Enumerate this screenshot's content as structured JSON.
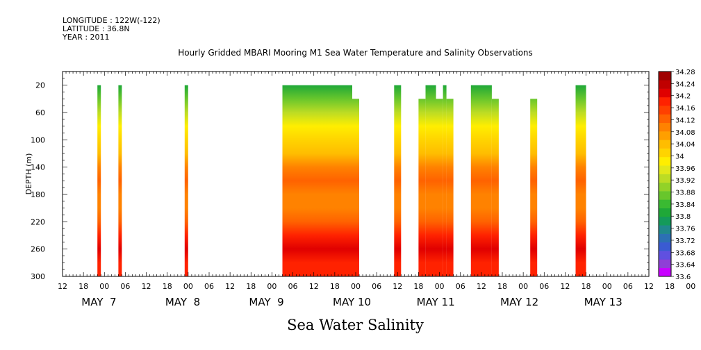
{
  "header": {
    "longitude": "LONGITUDE : 122W(-122)",
    "latitude": "LATITUDE : 36.8N",
    "year": "YEAR : 2011"
  },
  "title": "Hourly Gridded MBARI Mooring M1 Sea Water Temperature and Salinity Observations",
  "bottom_title": "Sea Water Salinity",
  "colors": {
    "scale": [
      "#c800ff",
      "#8f3fd6",
      "#6050e0",
      "#3a5bd2",
      "#2c70b4",
      "#20888c",
      "#149a5a",
      "#1fa838",
      "#3aba32",
      "#68c62c",
      "#92d228",
      "#bcdc24",
      "#e2e81a",
      "#ffee00",
      "#ffd400",
      "#ffbd00",
      "#ff9f00",
      "#ff8200",
      "#ff6200",
      "#ff4000",
      "#ff2200",
      "#e00000",
      "#c00000",
      "#a00000"
    ]
  },
  "chart_data": {
    "type": "heatmap",
    "title": "Hourly Gridded MBARI Mooring M1 Sea Water Temperature and Salinity Observations",
    "xlabel": "",
    "ylabel": "DEPTH (m)",
    "x_hour_ticks": [
      "12",
      "18",
      "00",
      "06",
      "12",
      "18",
      "00",
      "06",
      "12",
      "18",
      "00",
      "06",
      "12",
      "18",
      "00",
      "06",
      "12",
      "18",
      "00",
      "06",
      "12",
      "18",
      "00",
      "06",
      "12",
      "18",
      "00",
      "06",
      "12",
      "18",
      "00"
    ],
    "x_day_labels": [
      "MAY  7",
      "MAY  8",
      "MAY  9",
      "MAY 10",
      "MAY 11",
      "MAY 12",
      "MAY 13"
    ],
    "y_ticks": [
      "20",
      "60",
      "100",
      "140",
      "180",
      "220",
      "260",
      "300"
    ],
    "ylim": [
      300,
      0
    ],
    "xlim": [
      "2011-05-06 12:00",
      "2011-05-13 12:00"
    ],
    "colorbar_labels": [
      "34.28",
      "34.24",
      "34.2",
      "34.16",
      "34.12",
      "34.08",
      "34.04",
      "34",
      "33.96",
      "33.92",
      "33.88",
      "33.84",
      "33.8",
      "33.76",
      "33.72",
      "33.68",
      "33.64",
      "33.6"
    ],
    "colorbar_range": [
      33.6,
      34.28
    ],
    "depth_profile": [
      {
        "depth": 20,
        "salinity": 33.8
      },
      {
        "depth": 40,
        "salinity": 33.86
      },
      {
        "depth": 60,
        "salinity": 33.92
      },
      {
        "depth": 80,
        "salinity": 33.98
      },
      {
        "depth": 100,
        "salinity": 34.02
      },
      {
        "depth": 120,
        "salinity": 34.05
      },
      {
        "depth": 140,
        "salinity": 34.1
      },
      {
        "depth": 160,
        "salinity": 34.12
      },
      {
        "depth": 180,
        "salinity": 34.11
      },
      {
        "depth": 200,
        "salinity": 34.1
      },
      {
        "depth": 220,
        "salinity": 34.13
      },
      {
        "depth": 240,
        "salinity": 34.18
      },
      {
        "depth": 260,
        "salinity": 34.2
      },
      {
        "depth": 280,
        "salinity": 34.19
      },
      {
        "depth": 300,
        "salinity": 34.18
      }
    ],
    "segments": [
      {
        "start": "2011-05-06 22:00",
        "end": "2011-05-06 23:00",
        "top_depth": 20
      },
      {
        "start": "2011-05-07 04:00",
        "end": "2011-05-07 05:00",
        "top_depth": 20
      },
      {
        "start": "2011-05-07 23:00",
        "end": "2011-05-08 00:00",
        "top_depth": 20
      },
      {
        "start": "2011-05-09 03:00",
        "end": "2011-05-09 23:00",
        "top_depth": 20
      },
      {
        "start": "2011-05-09 23:00",
        "end": "2011-05-10 01:00",
        "top_depth": 40
      },
      {
        "start": "2011-05-10 11:00",
        "end": "2011-05-10 13:00",
        "top_depth": 20
      },
      {
        "start": "2011-05-10 18:00",
        "end": "2011-05-10 20:00",
        "top_depth": 40
      },
      {
        "start": "2011-05-10 20:00",
        "end": "2011-05-10 23:00",
        "top_depth": 20
      },
      {
        "start": "2011-05-10 23:00",
        "end": "2011-05-11 01:00",
        "top_depth": 40
      },
      {
        "start": "2011-05-11 01:00",
        "end": "2011-05-11 02:00",
        "top_depth": 20
      },
      {
        "start": "2011-05-11 02:00",
        "end": "2011-05-11 04:00",
        "top_depth": 40
      },
      {
        "start": "2011-05-11 09:00",
        "end": "2011-05-11 15:00",
        "top_depth": 20
      },
      {
        "start": "2011-05-11 15:00",
        "end": "2011-05-11 17:00",
        "top_depth": 40
      },
      {
        "start": "2011-05-12 02:00",
        "end": "2011-05-12 04:00",
        "top_depth": 40
      },
      {
        "start": "2011-05-12 15:00",
        "end": "2011-05-12 18:00",
        "top_depth": 20
      }
    ]
  }
}
